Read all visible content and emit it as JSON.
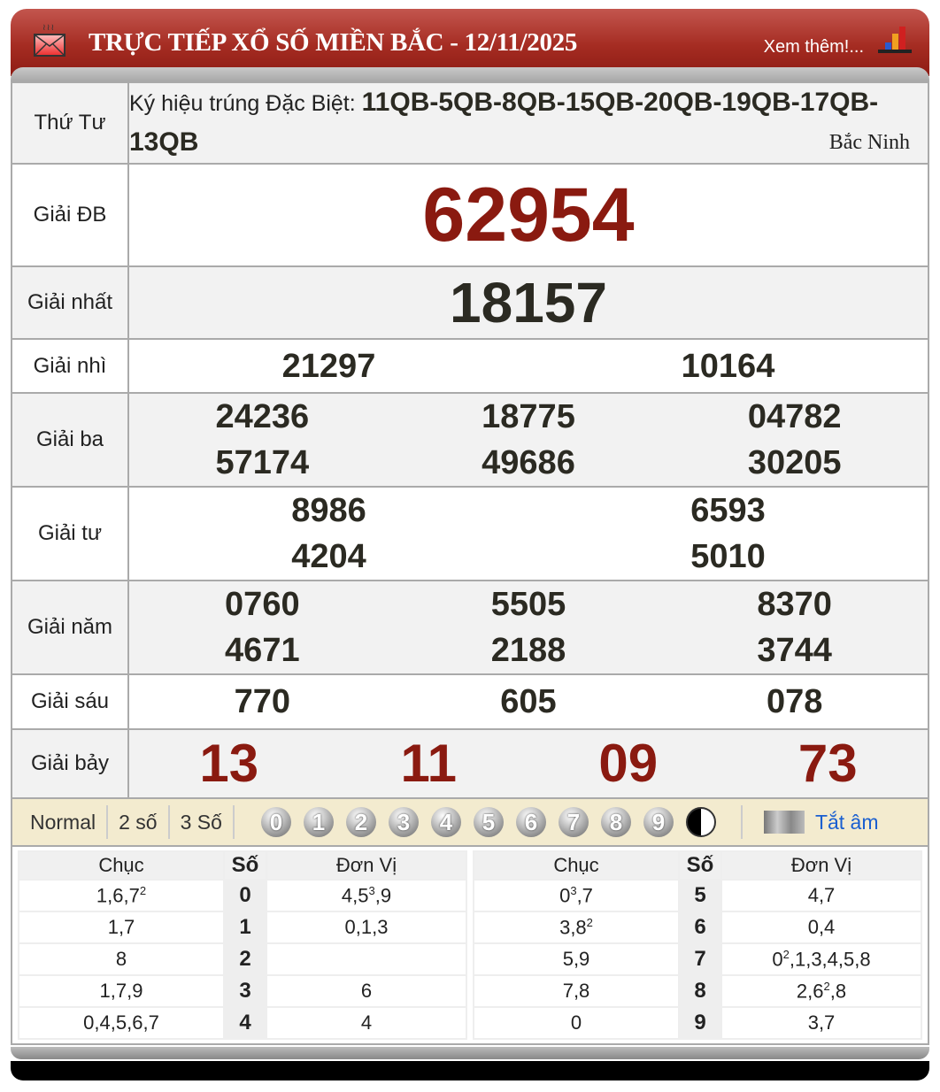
{
  "header": {
    "title": "TRỰC TIẾP XỔ SỐ MIỀN BẮC - 12/11/2025",
    "more_link": "Xem thêm!...",
    "icons": [
      "mail-icon",
      "bar-chart-icon"
    ]
  },
  "info": {
    "day": "Thứ Tư",
    "kyhieu_label": "Ký hiệu trúng Đặc Biệt:",
    "kyhieu_value": "11QB-5QB-8QB-15QB-20QB-19QB-17QB-13QB",
    "province": "Bắc Ninh"
  },
  "prizes": [
    {
      "label": "Giải ĐB",
      "numbers": [
        "62954"
      ]
    },
    {
      "label": "Giải nhất",
      "numbers": [
        "18157"
      ]
    },
    {
      "label": "Giải nhì",
      "numbers": [
        "21297",
        "10164"
      ]
    },
    {
      "label": "Giải ba",
      "numbers": [
        "24236",
        "18775",
        "04782",
        "57174",
        "49686",
        "30205"
      ]
    },
    {
      "label": "Giải tư",
      "numbers": [
        "8986",
        "6593",
        "4204",
        "5010"
      ]
    },
    {
      "label": "Giải năm",
      "numbers": [
        "0760",
        "5505",
        "8370",
        "4671",
        "2188",
        "3744"
      ]
    },
    {
      "label": "Giải sáu",
      "numbers": [
        "770",
        "605",
        "078"
      ]
    },
    {
      "label": "Giải bảy",
      "numbers": [
        "13",
        "11",
        "09",
        "73"
      ]
    }
  ],
  "colors": {
    "special": "#8a1a10",
    "header": "#a52c22",
    "toolbar": "#f3ebcf",
    "link": "#1a5fd0"
  },
  "toolbar": {
    "modes": [
      "Normal",
      "2 số",
      "3 Số"
    ],
    "digits": [
      "0",
      "1",
      "2",
      "3",
      "4",
      "5",
      "6",
      "7",
      "8",
      "9"
    ],
    "mute_label": "Tắt âm"
  },
  "loto": {
    "headers": [
      "Chục",
      "Số",
      "Đơn Vị"
    ],
    "rows": [
      {
        "chuc": [
          [
            "1,6,7",
            "2"
          ]
        ],
        "so": "0",
        "donvi": [
          [
            "4,5",
            "3"
          ],
          [
            ",9",
            ""
          ]
        ]
      },
      {
        "chuc": [
          [
            "1,7",
            ""
          ]
        ],
        "so": "1",
        "donvi": [
          [
            "0,1,3",
            ""
          ]
        ]
      },
      {
        "chuc": [
          [
            "8",
            ""
          ]
        ],
        "so": "2",
        "donvi": []
      },
      {
        "chuc": [
          [
            "1,7,9",
            ""
          ]
        ],
        "so": "3",
        "donvi": [
          [
            "6",
            ""
          ]
        ]
      },
      {
        "chuc": [
          [
            "0,4,5,6,7",
            ""
          ]
        ],
        "so": "4",
        "donvi": [
          [
            "4",
            ""
          ]
        ]
      },
      {
        "chuc": [
          [
            "0",
            "3"
          ],
          [
            ",7",
            ""
          ]
        ],
        "so": "5",
        "donvi": [
          [
            "4,7",
            ""
          ]
        ]
      },
      {
        "chuc": [
          [
            "3,8",
            "2"
          ]
        ],
        "so": "6",
        "donvi": [
          [
            "0,4",
            ""
          ]
        ]
      },
      {
        "chuc": [
          [
            "5,9",
            ""
          ]
        ],
        "so": "7",
        "donvi": [
          [
            "0",
            "2"
          ],
          [
            ",1,3,4,5,8",
            ""
          ]
        ]
      },
      {
        "chuc": [
          [
            "7,8",
            ""
          ]
        ],
        "so": "8",
        "donvi": [
          [
            "2,6",
            "2"
          ],
          [
            ",8",
            ""
          ]
        ]
      },
      {
        "chuc": [
          [
            "0",
            ""
          ]
        ],
        "so": "9",
        "donvi": [
          [
            "3,7",
            ""
          ]
        ]
      }
    ]
  }
}
